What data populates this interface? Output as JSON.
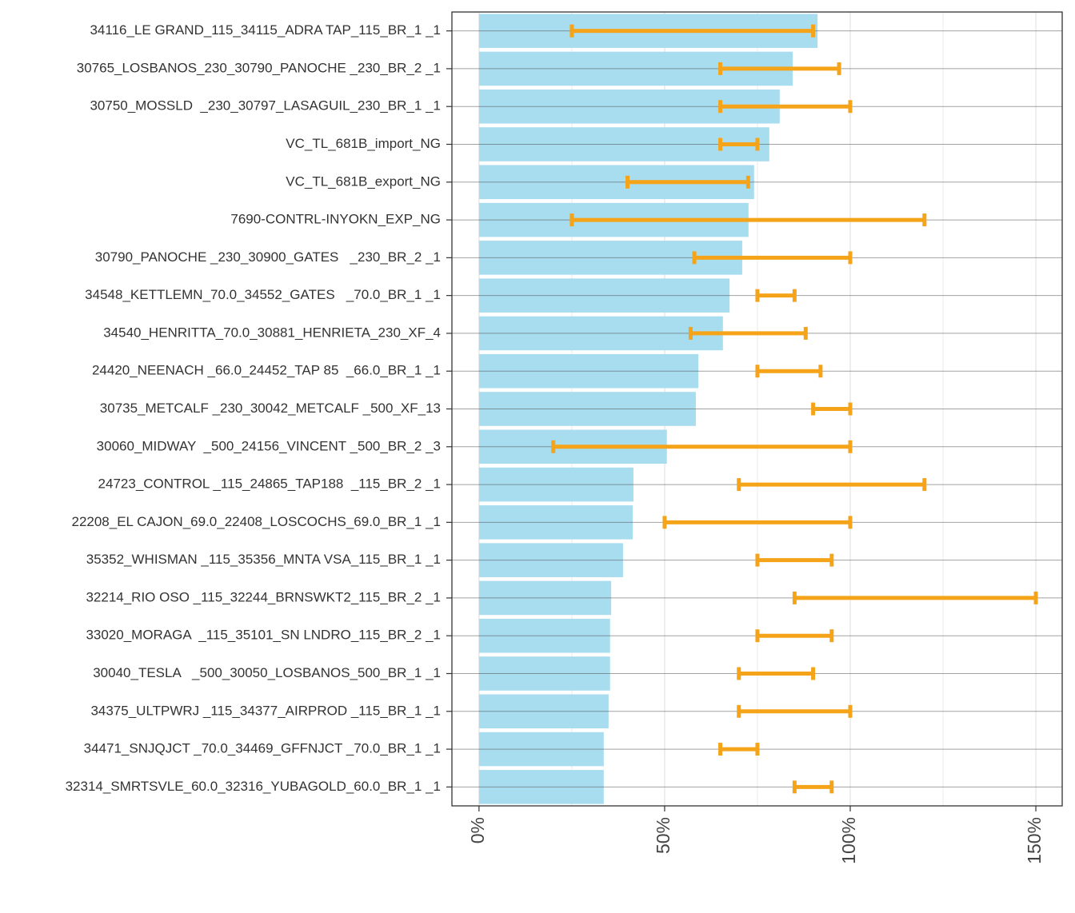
{
  "chart_data": {
    "type": "bar",
    "orientation": "horizontal",
    "categories": [
      "34116_LE GRAND_115_34115_ADRA TAP_115_BR_1 _1",
      "30765_LOSBANOS_230_30790_PANOCHE _230_BR_2 _1",
      "30750_MOSSLD  _230_30797_LASAGUIL_230_BR_1 _1",
      "VC_TL_681B_import_NG",
      "VC_TL_681B_export_NG",
      "7690-CONTRL-INYOKN_EXP_NG",
      "30790_PANOCHE _230_30900_GATES   _230_BR_2 _1",
      "34548_KETTLEMN_70.0_34552_GATES   _70.0_BR_1 _1",
      "34540_HENRITTA_70.0_30881_HENRIETA_230_XF_4",
      "24420_NEENACH _66.0_24452_TAP 85  _66.0_BR_1 _1",
      "30735_METCALF _230_30042_METCALF _500_XF_13",
      "30060_MIDWAY  _500_24156_VINCENT _500_BR_2 _3",
      "24723_CONTROL _115_24865_TAP188  _115_BR_2 _1",
      "22208_EL CAJON_69.0_22408_LOSCOCHS_69.0_BR_1 _1",
      "35352_WHISMAN _115_35356_MNTA VSA_115_BR_1 _1",
      "32214_RIO OSO _115_32244_BRNSWKT2_115_BR_2 _1",
      "33020_MORAGA  _115_35101_SN LNDRO_115_BR_2 _1",
      "30040_TESLA   _500_30050_LOSBANOS_500_BR_1 _1",
      "34375_ULTPWRJ _115_34377_AIRPROD _115_BR_1 _1",
      "34471_SNJQJCT _70.0_34469_GFFNJCT _70.0_BR_1 _1",
      "32314_SMRTSVLE_60.0_32316_YUBAGOLD_60.0_BR_1 _1"
    ],
    "values": [
      91.2,
      84.5,
      81.0,
      78.2,
      74.1,
      72.6,
      70.9,
      67.5,
      65.7,
      59.1,
      58.4,
      50.6,
      41.6,
      41.4,
      38.8,
      35.6,
      35.3,
      35.3,
      34.9,
      33.6,
      33.6
    ],
    "low": [
      25,
      65,
      65,
      65,
      40,
      25,
      58,
      75,
      57,
      75,
      90,
      20,
      70,
      50,
      75,
      85,
      75,
      70,
      70,
      65,
      85
    ],
    "high": [
      90,
      97,
      100,
      75,
      72.5,
      120,
      100,
      85,
      88,
      92,
      100,
      100,
      120,
      100,
      95,
      150,
      95,
      90,
      100,
      75,
      95
    ],
    "color": "#a8dcef",
    "error_color": "#f5a41a",
    "xlim": [
      -7.3,
      157.1
    ],
    "xticks": [
      {
        "value": 0,
        "label": "0%"
      },
      {
        "value": 50,
        "label": "50%"
      },
      {
        "value": 100,
        "label": "100%"
      },
      {
        "value": 150,
        "label": "150%"
      }
    ],
    "xminor": [
      25,
      75,
      125
    ],
    "grid": true
  }
}
